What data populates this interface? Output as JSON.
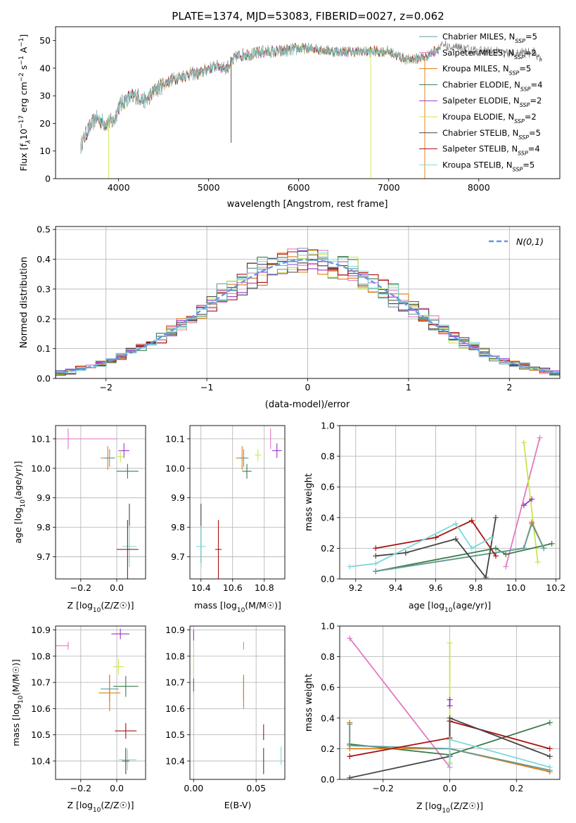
{
  "title": "PLATE=1374, MJD=53083, FIBERID=0027, z=0.062",
  "colors": {
    "Chabrier MILES": "#5f9ea0",
    "Salpeter MILES": "#e377c2",
    "Kroupa MILES": "#e07a10",
    "Chabrier ELODIE": "#3a7a4a",
    "Salpeter ELODIE": "#9932cc",
    "Kroupa ELODIE": "#c8e650",
    "Chabrier STELIB": "#444444",
    "Salpeter STELIB": "#aa1111",
    "Kroupa STELIB": "#7fd8d8",
    "normal": "#6495ed"
  },
  "chart_data": [
    {
      "id": "spectrum",
      "type": "line",
      "title": "PLATE=1374, MJD=53083, FIBERID=0027, z=0.062",
      "xlabel": "wavelength [Angstrom, rest frame]",
      "ylabel": "Flux [f_λ 10^-17 erg cm^-2 s^-1 A^-1]",
      "ylabel_parts": {
        "pre": "Flux [f",
        "s1": "λ",
        "mid": "10",
        "s2": "−17",
        "u1": " erg cm",
        "s3": "−2",
        "u2": " s",
        "s4": "−1",
        "u3": " A",
        "s5": "−1",
        "end": "]"
      },
      "xlim": [
        3300,
        8900
      ],
      "ylim": [
        0,
        55
      ],
      "xticks": [
        4000,
        5000,
        6000,
        7000,
        8000
      ],
      "yticks": [
        0,
        10,
        20,
        30,
        40,
        50
      ],
      "legend_position": "upper right",
      "legend": [
        {
          "name": "Chabrier MILES",
          "n": "5"
        },
        {
          "name": "Salpeter MILES",
          "n": "2"
        },
        {
          "name": "Kroupa MILES",
          "n": "5"
        },
        {
          "name": "Chabrier ELODIE",
          "n": "4"
        },
        {
          "name": "Salpeter ELODIE",
          "n": "2"
        },
        {
          "name": "Kroupa ELODIE",
          "n": "2"
        },
        {
          "name": "Chabrier STELIB",
          "n": "5"
        },
        {
          "name": "Salpeter STELIB",
          "n": "4"
        },
        {
          "name": "Kroupa STELIB",
          "n": "5"
        }
      ],
      "legend_nlabel": "N",
      "legend_nsub": "SSP",
      "continuum": {
        "x": [
          3580,
          3650,
          3750,
          3850,
          3950,
          4000,
          4100,
          4200,
          4300,
          4400,
          4500,
          4600,
          4700,
          4800,
          4900,
          5000,
          5100,
          5200,
          5300,
          5400,
          5500,
          5600,
          5800,
          6000,
          6200,
          6400,
          6600,
          6800,
          7000,
          7200,
          7400,
          7600,
          7800,
          8000,
          8200,
          8400,
          8600,
          8700
        ],
        "y": [
          12,
          17,
          22,
          20,
          21,
          26,
          29,
          30,
          28,
          32,
          34,
          36,
          37,
          38,
          38,
          40,
          41,
          40,
          44,
          45,
          45,
          46,
          46,
          47,
          47,
          46,
          46,
          46,
          46,
          43,
          44,
          48,
          47,
          46,
          46,
          45,
          46,
          43
        ]
      },
      "spikes": [
        [
          3890,
          0
        ],
        [
          5250,
          13
        ],
        [
          6800,
          0
        ],
        [
          7400,
          0
        ]
      ]
    },
    {
      "id": "residuals",
      "type": "histogram",
      "xlabel": "(data-model)/error",
      "ylabel": "Normed distribution",
      "xlim": [
        -2.5,
        2.5
      ],
      "ylim": [
        0,
        0.51
      ],
      "xticks": [
        -2,
        -1,
        0,
        1,
        2
      ],
      "yticks": [
        0.0,
        0.1,
        0.2,
        0.3,
        0.4,
        0.5
      ],
      "bin_width": 0.1,
      "legend_label": "N(0,1)",
      "legend_position": "upper right"
    },
    {
      "id": "age-vs-z",
      "type": "scatter",
      "xlabel": "Z [log10(Z/Z☉)]",
      "ylabel": "age [log10(age/yr)]",
      "xlim": [
        -0.34,
        0.16
      ],
      "ylim": [
        9.625,
        10.145
      ],
      "xticks": [
        -0.2,
        0.0
      ],
      "yticks": [
        9.7,
        9.8,
        9.9,
        10.0,
        10.1
      ],
      "points": [
        {
          "series": "Salpeter MILES",
          "x": -0.27,
          "y": 10.1,
          "xerr": [
            0.27,
            0.27
          ],
          "yerr": 0.035
        },
        {
          "series": "Salpeter ELODIE",
          "x": 0.04,
          "y": 10.06,
          "xerr": [
            0.03,
            0.03
          ],
          "yerr": 0.025
        },
        {
          "series": "Kroupa MILES",
          "x": -0.05,
          "y": 10.035,
          "xerr": [
            0.04,
            0.04
          ],
          "yerr": 0.04
        },
        {
          "series": "Chabrier MILES",
          "x": -0.04,
          "y": 10.035,
          "xerr": [
            0.03,
            0.03
          ],
          "yerr": 0.03
        },
        {
          "series": "Kroupa ELODIE",
          "x": 0.02,
          "y": 10.04,
          "xerr": [
            0.02,
            0.02
          ],
          "yerr": 0.02
        },
        {
          "series": "Chabrier ELODIE",
          "x": 0.06,
          "y": 9.99,
          "xerr": [
            0.06,
            0.06
          ],
          "yerr": 0.025
        },
        {
          "series": "Chabrier STELIB",
          "x": 0.07,
          "y": 9.78,
          "xerr": [
            0.0,
            0.0
          ],
          "yerr": 0.1
        },
        {
          "series": "Kroupa STELIB",
          "x": 0.07,
          "y": 9.735,
          "xerr": [
            0.04,
            0.04
          ],
          "yerr": 0.07
        },
        {
          "series": "Salpeter STELIB",
          "x": 0.06,
          "y": 9.725,
          "xerr": [
            0.06,
            0.06
          ],
          "yerr": 0.1
        }
      ]
    },
    {
      "id": "age-vs-mass",
      "type": "scatter",
      "xlabel": "mass [log10(M/M☉)]",
      "ylabel": "",
      "xlim": [
        10.33,
        10.93
      ],
      "ylim": [
        9.625,
        10.145
      ],
      "xticks": [
        10.4,
        10.6,
        10.8
      ],
      "yticks": [
        9.7,
        9.8,
        9.9,
        10.0,
        10.1
      ],
      "points": [
        {
          "series": "Salpeter MILES",
          "x": 10.84,
          "y": 10.1,
          "xerr": [
            0.0,
            0.0
          ],
          "yerr": 0.035
        },
        {
          "series": "Salpeter ELODIE",
          "x": 10.88,
          "y": 10.06,
          "xerr": [
            0.03,
            0.03
          ],
          "yerr": 0.025
        },
        {
          "series": "Kroupa MILES",
          "x": 10.66,
          "y": 10.035,
          "xerr": [
            0.04,
            0.04
          ],
          "yerr": 0.04
        },
        {
          "series": "Chabrier MILES",
          "x": 10.67,
          "y": 10.035,
          "xerr": [
            0.03,
            0.03
          ],
          "yerr": 0.03
        },
        {
          "series": "Kroupa ELODIE",
          "x": 10.76,
          "y": 10.045,
          "xerr": [
            0.02,
            0.02
          ],
          "yerr": 0.02
        },
        {
          "series": "Chabrier ELODIE",
          "x": 10.69,
          "y": 9.99,
          "xerr": [
            0.03,
            0.03
          ],
          "yerr": 0.025
        },
        {
          "series": "Chabrier STELIB",
          "x": 10.4,
          "y": 9.78,
          "xerr": [
            0.0,
            0.0
          ],
          "yerr": 0.1
        },
        {
          "series": "Kroupa STELIB",
          "x": 10.4,
          "y": 9.735,
          "xerr": [
            0.03,
            0.03
          ],
          "yerr": 0.07
        },
        {
          "series": "Salpeter STELIB",
          "x": 10.51,
          "y": 9.725,
          "xerr": [
            0.02,
            0.02
          ],
          "yerr": 0.1
        }
      ]
    },
    {
      "id": "weight-vs-age",
      "type": "line",
      "xlabel": "age [log10(age/yr)]",
      "ylabel": "mass weight",
      "xlim": [
        9.12,
        10.22
      ],
      "ylim": [
        0,
        1.0
      ],
      "xticks": [
        9.2,
        9.4,
        9.6,
        9.8,
        10.0,
        10.2
      ],
      "yticks": [
        0.0,
        0.2,
        0.4,
        0.6,
        0.8,
        1.0
      ],
      "series": [
        {
          "name": "Salpeter MILES",
          "x": [
            9.95,
            10.12
          ],
          "y": [
            0.08,
            0.92
          ]
        },
        {
          "name": "Kroupa ELODIE",
          "x": [
            10.04,
            10.11
          ],
          "y": [
            0.89,
            0.11
          ]
        },
        {
          "name": "Salpeter ELODIE",
          "x": [
            10.04,
            10.08
          ],
          "y": [
            0.48,
            0.52
          ]
        },
        {
          "name": "Chabrier ELODIE",
          "x": [
            9.3,
            9.9,
            9.95,
            10.18
          ],
          "y": [
            0.05,
            0.2,
            0.16,
            0.23
          ]
        },
        {
          "name": "Kroupa MILES",
          "x": [
            9.3,
            10.04,
            10.08,
            10.14
          ],
          "y": [
            0.05,
            0.2,
            0.37,
            0.2
          ]
        },
        {
          "name": "Chabrier MILES",
          "x": [
            9.3,
            10.04,
            10.08,
            10.14
          ],
          "y": [
            0.05,
            0.2,
            0.36,
            0.2
          ]
        },
        {
          "name": "Salpeter STELIB",
          "x": [
            9.3,
            9.6,
            9.78,
            9.9
          ],
          "y": [
            0.2,
            0.27,
            0.38,
            0.15
          ]
        },
        {
          "name": "Chabrier STELIB",
          "x": [
            9.3,
            9.45,
            9.7,
            9.85,
            9.9
          ],
          "y": [
            0.15,
            0.17,
            0.26,
            0.01,
            0.4
          ]
        },
        {
          "name": "Kroupa STELIB",
          "x": [
            9.17,
            9.3,
            9.7,
            9.78,
            9.88
          ],
          "y": [
            0.08,
            0.1,
            0.36,
            0.2,
            0.27
          ]
        }
      ]
    },
    {
      "id": "mass-vs-z",
      "type": "scatter",
      "xlabel": "Z [log10(Z/Z☉)]",
      "ylabel": "mass [log10(M/M☉)]",
      "xlim": [
        -0.34,
        0.16
      ],
      "ylim": [
        10.33,
        10.915
      ],
      "xticks": [
        -0.2,
        0.0
      ],
      "yticks": [
        10.4,
        10.5,
        10.6,
        10.7,
        10.8,
        10.9
      ],
      "points": [
        {
          "series": "Salpeter ELODIE",
          "x": 0.02,
          "y": 10.885,
          "xerr": [
            0.05,
            0.05
          ],
          "yerr": 0.02
        },
        {
          "series": "Salpeter MILES",
          "x": -0.27,
          "y": 10.84,
          "xerr": [
            0.27,
            0.0
          ],
          "yerr": 0.015
        },
        {
          "series": "Kroupa ELODIE",
          "x": 0.01,
          "y": 10.76,
          "xerr": [
            0.03,
            0.03
          ],
          "yerr": 0.03
        },
        {
          "series": "Chabrier ELODIE",
          "x": 0.05,
          "y": 10.685,
          "xerr": [
            0.07,
            0.07
          ],
          "yerr": 0.04
        },
        {
          "series": "Chabrier MILES",
          "x": -0.04,
          "y": 10.675,
          "xerr": [
            0.05,
            0.05
          ],
          "yerr": 0.05
        },
        {
          "series": "Kroupa MILES",
          "x": -0.04,
          "y": 10.66,
          "xerr": [
            0.06,
            0.06
          ],
          "yerr": 0.07
        },
        {
          "series": "Salpeter STELIB",
          "x": 0.05,
          "y": 10.515,
          "xerr": [
            0.06,
            0.06
          ],
          "yerr": 0.03
        },
        {
          "series": "Kroupa STELIB",
          "x": 0.06,
          "y": 10.405,
          "xerr": [
            0.05,
            0.05
          ],
          "yerr": 0.04
        },
        {
          "series": "Chabrier STELIB",
          "x": 0.05,
          "y": 10.4,
          "xerr": [
            0.02,
            0.02
          ],
          "yerr": 0.05
        }
      ]
    },
    {
      "id": "mass-vs-ebv",
      "type": "scatter",
      "xlabel": "E(B-V)",
      "ylabel": "",
      "xlim": [
        -0.003,
        0.073
      ],
      "ylim": [
        10.33,
        10.915
      ],
      "xticks": [
        0.0,
        0.05
      ],
      "yticks": [
        10.4,
        10.5,
        10.6,
        10.7,
        10.8,
        10.9
      ],
      "points": [
        {
          "series": "Salpeter ELODIE",
          "x": 0.0,
          "y": 10.88,
          "xerr": [
            0,
            0
          ],
          "yerr": 0.02
        },
        {
          "series": "Salpeter MILES",
          "x": 0.04,
          "y": 10.84,
          "xerr": [
            0,
            0
          ],
          "yerr": 0.015
        },
        {
          "series": "Kroupa ELODIE",
          "x": 0.0,
          "y": 10.76,
          "xerr": [
            0,
            0
          ],
          "yerr": 0.03
        },
        {
          "series": "Chabrier ELODIE",
          "x": 0.0,
          "y": 10.69,
          "xerr": [
            0,
            0
          ],
          "yerr": 0.025
        },
        {
          "series": "Chabrier MILES",
          "x": 0.04,
          "y": 10.68,
          "xerr": [
            0,
            0
          ],
          "yerr": 0.05
        },
        {
          "series": "Kroupa MILES",
          "x": 0.04,
          "y": 10.66,
          "xerr": [
            0,
            0
          ],
          "yerr": 0.06
        },
        {
          "series": "Salpeter STELIB",
          "x": 0.056,
          "y": 10.51,
          "xerr": [
            0,
            0
          ],
          "yerr": 0.03
        },
        {
          "series": "Kroupa STELIB",
          "x": 0.07,
          "y": 10.42,
          "xerr": [
            0,
            0
          ],
          "yerr": 0.035
        },
        {
          "series": "Chabrier STELIB",
          "x": 0.056,
          "y": 10.4,
          "xerr": [
            0,
            0
          ],
          "yerr": 0.05
        }
      ]
    },
    {
      "id": "weight-vs-z",
      "type": "line",
      "xlabel": "Z [log10(Z/Z☉)]",
      "ylabel": "mass weight",
      "xlim": [
        -0.33,
        0.33
      ],
      "ylim": [
        0,
        1.0
      ],
      "xticks": [
        -0.2,
        0.0,
        0.2
      ],
      "yticks": [
        0.0,
        0.2,
        0.4,
        0.6,
        0.8,
        1.0
      ],
      "series": [
        {
          "name": "Salpeter MILES",
          "x": [
            -0.3,
            0.0
          ],
          "y": [
            0.92,
            0.08
          ]
        },
        {
          "name": "Kroupa ELODIE",
          "x": [
            0.0,
            0.0
          ],
          "y": [
            0.89,
            0.11
          ]
        },
        {
          "name": "Salpeter ELODIE",
          "x": [
            0.0,
            0.0
          ],
          "y": [
            0.52,
            0.48
          ]
        },
        {
          "name": "Chabrier ELODIE",
          "x": [
            -0.3,
            0.0,
            0.3
          ],
          "y": [
            0.23,
            0.16,
            0.37
          ]
        },
        {
          "name": "Kroupa MILES",
          "x": [
            -0.3,
            -0.3,
            0.0,
            0.3
          ],
          "y": [
            0.37,
            0.2,
            0.2,
            0.05
          ]
        },
        {
          "name": "Chabrier MILES",
          "x": [
            -0.3,
            -0.3,
            0.0,
            0.3
          ],
          "y": [
            0.36,
            0.22,
            0.2,
            0.06
          ]
        },
        {
          "name": "Salpeter STELIB",
          "x": [
            -0.3,
            0.0,
            0.0,
            0.3
          ],
          "y": [
            0.15,
            0.27,
            0.38,
            0.2
          ]
        },
        {
          "name": "Chabrier STELIB",
          "x": [
            -0.3,
            0.0,
            0.0,
            0.3
          ],
          "y": [
            0.01,
            0.15,
            0.4,
            0.15
          ]
        },
        {
          "name": "Kroupa STELIB",
          "x": [
            0.0,
            0.0,
            0.3
          ],
          "y": [
            0.1,
            0.26,
            0.08
          ]
        }
      ]
    }
  ]
}
